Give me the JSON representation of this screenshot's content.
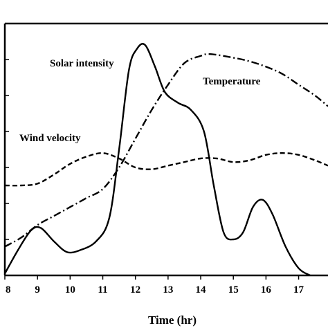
{
  "chart_data": {
    "type": "line",
    "xlabel": "Time (hr)",
    "xlim": [
      8,
      17.9
    ],
    "ylim": [
      0,
      7
    ],
    "x_ticks": [
      8,
      9,
      10,
      11,
      12,
      13,
      14,
      15,
      16,
      17
    ],
    "y_ticks": [
      1,
      2,
      3,
      4,
      5,
      6
    ],
    "y_tick_labels_visible": false,
    "grid": false,
    "legend": "none (series labelled inline)",
    "series": [
      {
        "name": "Solar intensity",
        "style": "solid",
        "points": [
          [
            8.0,
            0.05
          ],
          [
            8.4,
            0.7
          ],
          [
            8.8,
            1.25
          ],
          [
            9.1,
            1.32
          ],
          [
            9.5,
            0.95
          ],
          [
            9.9,
            0.65
          ],
          [
            10.3,
            0.7
          ],
          [
            10.8,
            0.95
          ],
          [
            11.2,
            1.6
          ],
          [
            11.5,
            3.5
          ],
          [
            11.8,
            5.7
          ],
          [
            12.05,
            6.3
          ],
          [
            12.3,
            6.4
          ],
          [
            12.6,
            5.8
          ],
          [
            12.9,
            5.1
          ],
          [
            13.3,
            4.8
          ],
          [
            13.7,
            4.6
          ],
          [
            14.1,
            4.0
          ],
          [
            14.4,
            2.5
          ],
          [
            14.7,
            1.2
          ],
          [
            15.0,
            1.0
          ],
          [
            15.3,
            1.2
          ],
          [
            15.6,
            1.9
          ],
          [
            15.9,
            2.1
          ],
          [
            16.2,
            1.7
          ],
          [
            16.6,
            0.8
          ],
          [
            17.0,
            0.2
          ],
          [
            17.35,
            0.0
          ]
        ]
      },
      {
        "name": "Temperature",
        "style": "dash-dot",
        "points": [
          [
            8.0,
            0.8
          ],
          [
            8.5,
            1.05
          ],
          [
            9.0,
            1.4
          ],
          [
            9.5,
            1.65
          ],
          [
            10.0,
            1.9
          ],
          [
            10.5,
            2.15
          ],
          [
            11.0,
            2.4
          ],
          [
            11.5,
            3.0
          ],
          [
            12.0,
            3.8
          ],
          [
            12.5,
            4.6
          ],
          [
            13.0,
            5.3
          ],
          [
            13.5,
            5.9
          ],
          [
            14.0,
            6.1
          ],
          [
            14.3,
            6.15
          ],
          [
            15.0,
            6.05
          ],
          [
            15.5,
            5.95
          ],
          [
            16.0,
            5.8
          ],
          [
            16.5,
            5.6
          ],
          [
            17.0,
            5.3
          ],
          [
            17.5,
            5.0
          ],
          [
            17.9,
            4.7
          ]
        ]
      },
      {
        "name": "Wind velocity",
        "style": "dashed",
        "points": [
          [
            8.0,
            2.5
          ],
          [
            8.5,
            2.5
          ],
          [
            9.0,
            2.55
          ],
          [
            9.5,
            2.8
          ],
          [
            10.0,
            3.1
          ],
          [
            10.5,
            3.3
          ],
          [
            11.0,
            3.4
          ],
          [
            11.5,
            3.25
          ],
          [
            12.0,
            3.0
          ],
          [
            12.5,
            2.95
          ],
          [
            13.0,
            3.05
          ],
          [
            13.5,
            3.15
          ],
          [
            14.0,
            3.25
          ],
          [
            14.5,
            3.25
          ],
          [
            15.0,
            3.15
          ],
          [
            15.5,
            3.2
          ],
          [
            16.0,
            3.35
          ],
          [
            16.5,
            3.4
          ],
          [
            17.0,
            3.35
          ],
          [
            17.5,
            3.2
          ],
          [
            17.9,
            3.05
          ]
        ]
      }
    ]
  }
}
